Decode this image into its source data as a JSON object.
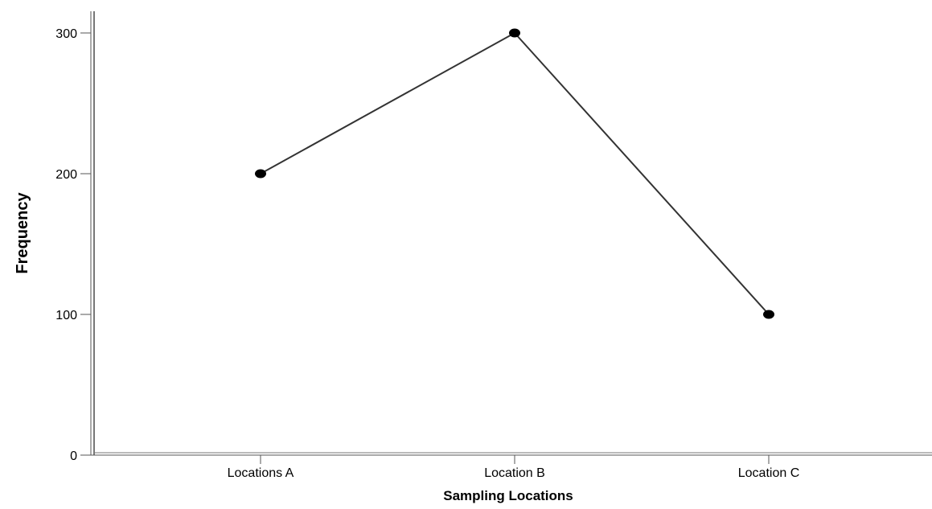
{
  "chart_data": {
    "type": "line",
    "title": "",
    "xlabel": "Sampling Locations",
    "ylabel": "Frequency",
    "categories": [
      "Locations A",
      "Location B",
      "Location C"
    ],
    "series": [
      {
        "values": [
          200,
          300,
          100
        ]
      }
    ],
    "ylim": [
      0,
      300
    ],
    "yticks": [
      "0",
      "100",
      "200",
      "300"
    ],
    "grid": false,
    "legend": "none",
    "line_color": "#333333",
    "marker_color": "#000000",
    "axis_color": "#555555"
  }
}
